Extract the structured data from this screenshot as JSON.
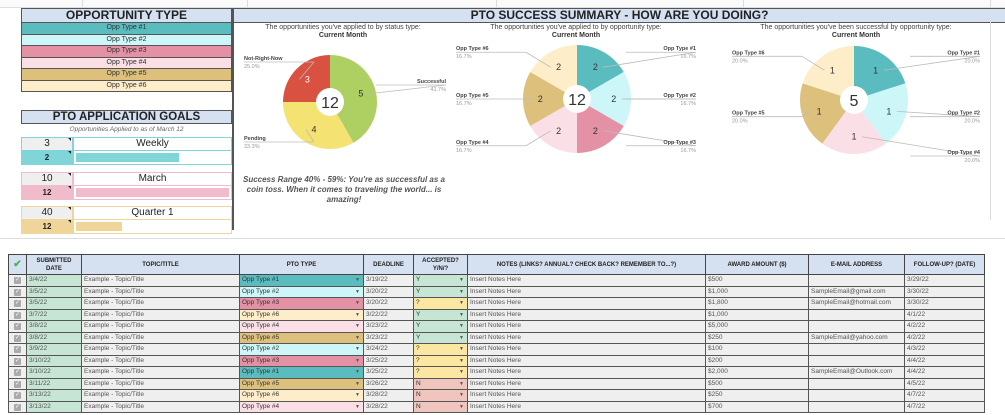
{
  "opportunity_type": {
    "title": "OPPORTUNITY TYPE",
    "items": [
      {
        "label": "Opp Type #1",
        "color": "#5bbcbf"
      },
      {
        "label": "Opp Type #2",
        "color": "#ccf6f8"
      },
      {
        "label": "Opp Type #3",
        "color": "#e490a5"
      },
      {
        "label": "Opp Type #4",
        "color": "#fbdfe6"
      },
      {
        "label": "Opp Type #5",
        "color": "#dcc07c"
      },
      {
        "label": "Opp Type #6",
        "color": "#fdedc8"
      }
    ]
  },
  "goals": {
    "title": "PTO APPLICATION GOALS",
    "subtitle": "Opportunities Applied to as of March 12",
    "items": [
      {
        "target": "3",
        "period": "Weekly",
        "count": "2",
        "progress": 0.67,
        "color": "#7fd5d8",
        "border": "#7fd5d8"
      },
      {
        "target": "10",
        "period": "March",
        "count": "12",
        "progress": 1.0,
        "color": "#f0bccb",
        "border": "#f0bccb"
      },
      {
        "target": "40",
        "period": "Quarter 1",
        "count": "12",
        "progress": 0.3,
        "color": "#efd599",
        "border": "#efd599"
      }
    ]
  },
  "summary": {
    "title": "PTO SUCCESS SUMMARY - HOW ARE YOU DOING?",
    "success_text": "Success Range 40% - 59%: You're as successful as a coin toss. When it comes to traveling the world... is amazing!"
  },
  "chart_data": [
    {
      "type": "pie",
      "title": "The opportunities you've applied to by status type:",
      "subtitle": "Current Month",
      "center_label": "12",
      "slices": [
        {
          "label": "Successful",
          "value": 5,
          "pct": "41.7%",
          "color": "#aecf62"
        },
        {
          "label": "Pending",
          "value": 4,
          "pct": "33.3%",
          "color": "#f4e372"
        },
        {
          "label": "Not-Right-Now",
          "value": 3,
          "pct": "25.0%",
          "color": "#d95140"
        }
      ]
    },
    {
      "type": "pie",
      "title": "The opportunities you've applied to by opportunity type:",
      "subtitle": "Current Month",
      "center_label": "12",
      "slices": [
        {
          "label": "Opp Type #1",
          "value": 2,
          "pct": "16.7%",
          "color": "#5bbcbf"
        },
        {
          "label": "Opp Type #2",
          "value": 2,
          "pct": "16.7%",
          "color": "#ccf6f8"
        },
        {
          "label": "Opp Type #3",
          "value": 2,
          "pct": "16.7%",
          "color": "#e490a5"
        },
        {
          "label": "Opp Type #4",
          "value": 2,
          "pct": "16.7%",
          "color": "#fbdfe6"
        },
        {
          "label": "Opp Type #5",
          "value": 2,
          "pct": "16.7%",
          "color": "#dcc07c"
        },
        {
          "label": "Opp Type #6",
          "value": 2,
          "pct": "16.7%",
          "color": "#fdedc8"
        }
      ]
    },
    {
      "type": "pie",
      "title": "The opportunities you've been successful by opportunity type:",
      "subtitle": "Current Month",
      "center_label": "5",
      "slices": [
        {
          "label": "Opp Type #1",
          "value": 1,
          "pct": "20.0%",
          "color": "#5bbcbf"
        },
        {
          "label": "Opp Type #2",
          "value": 1,
          "pct": "20.0%",
          "color": "#ccf6f8"
        },
        {
          "label": "Opp Type #4",
          "value": 1,
          "pct": "20.0%",
          "color": "#fbdfe6"
        },
        {
          "label": "Opp Type #5",
          "value": 1,
          "pct": "20.0%",
          "color": "#dcc07c"
        },
        {
          "label": "Opp Type #6",
          "value": 1,
          "pct": "20.0%",
          "color": "#fdedc8"
        }
      ]
    }
  ],
  "table": {
    "headers": [
      "✔",
      "SUBMITTED DATE",
      "TOPIC/TITLE",
      "PTO TYPE",
      "DEADLINE",
      "ACCEPTED? Y/N/?",
      "NOTES (LINKS? ANNUAL? CHECK BACK? REMEMBER TO...?)",
      "AWARD AMOUNT ($)",
      "E-MAIL ADDRESS",
      "FOLLOW-UP? (DATE)"
    ],
    "accepted_colors": {
      "Y": "#c7e5d4",
      "?": "#fbe6a2",
      "N": "#efc5bd"
    },
    "rows": [
      {
        "date": "3/4/22",
        "topic": "Example - Topic/Title",
        "type": "Opp Type #1",
        "type_color": "#5bbcbf",
        "deadline": "3/19/22",
        "accepted": "Y",
        "notes": "Insert Notes Here",
        "award": "$500",
        "email": "",
        "followup": "3/29/22"
      },
      {
        "date": "3/5/22",
        "topic": "Example - Topic/Title",
        "type": "Opp Type #2",
        "type_color": "#ccf6f8",
        "deadline": "3/20/22",
        "accepted": "Y",
        "notes": "Insert Notes Here",
        "award": "$1,000",
        "email": "SampleEmail@gmail.com",
        "followup": "3/30/22"
      },
      {
        "date": "3/5/22",
        "topic": "Example - Topic/Title",
        "type": "Opp Type #3",
        "type_color": "#e490a5",
        "deadline": "3/20/22",
        "accepted": "?",
        "notes": "Insert Notes Here",
        "award": "$1,800",
        "email": "SampleEmail@hotmail.com",
        "followup": "3/30/22"
      },
      {
        "date": "3/7/22",
        "topic": "Example - Topic/Title",
        "type": "Opp Type #6",
        "type_color": "#fdedc8",
        "deadline": "3/22/22",
        "accepted": "Y",
        "notes": "Insert Notes Here",
        "award": "$1,000",
        "email": "",
        "followup": "4/1/22"
      },
      {
        "date": "3/8/22",
        "topic": "Example - Topic/Title",
        "type": "Opp Type #4",
        "type_color": "#fbdfe6",
        "deadline": "3/23/22",
        "accepted": "Y",
        "notes": "Insert Notes Here",
        "award": "$5,000",
        "email": "",
        "followup": "4/2/22"
      },
      {
        "date": "3/8/22",
        "topic": "Example - Topic/Title",
        "type": "Opp Type #5",
        "type_color": "#dcc07c",
        "deadline": "3/23/22",
        "accepted": "Y",
        "notes": "Insert Notes Here",
        "award": "$250",
        "email": "SampleEmail@yahoo.com",
        "followup": "4/2/22"
      },
      {
        "date": "3/9/22",
        "topic": "Example - Topic/Title",
        "type": "Opp Type #2",
        "type_color": "#ccf6f8",
        "deadline": "3/24/22",
        "accepted": "?",
        "notes": "Insert Notes Here",
        "award": "$100",
        "email": "",
        "followup": "4/3/22"
      },
      {
        "date": "3/10/22",
        "topic": "Example - Topic/Title",
        "type": "Opp Type #3",
        "type_color": "#e490a5",
        "deadline": "3/25/22",
        "accepted": "?",
        "notes": "Insert Notes Here",
        "award": "$200",
        "email": "",
        "followup": "4/4/22"
      },
      {
        "date": "3/10/22",
        "topic": "Example - Topic/Title",
        "type": "Opp Type #1",
        "type_color": "#5bbcbf",
        "deadline": "3/25/22",
        "accepted": "?",
        "notes": "Insert Notes Here",
        "award": "$2,000",
        "email": "SampleEmail@Outlook.com",
        "followup": "4/4/22"
      },
      {
        "date": "3/11/22",
        "topic": "Example - Topic/Title",
        "type": "Opp Type #5",
        "type_color": "#dcc07c",
        "deadline": "3/26/22",
        "accepted": "N",
        "notes": "Insert Notes Here",
        "award": "$500",
        "email": "",
        "followup": "4/5/22"
      },
      {
        "date": "3/13/22",
        "topic": "Example - Topic/Title",
        "type": "Opp Type #6",
        "type_color": "#fdedc8",
        "deadline": "3/28/22",
        "accepted": "N",
        "notes": "Insert Notes Here",
        "award": "$250",
        "email": "",
        "followup": "4/7/22"
      },
      {
        "date": "3/13/22",
        "topic": "Example - Topic/Title",
        "type": "Opp Type #4",
        "type_color": "#fbdfe6",
        "deadline": "3/28/22",
        "accepted": "N",
        "notes": "Insert Notes Here",
        "award": "$700",
        "email": "",
        "followup": "4/7/22"
      }
    ]
  }
}
